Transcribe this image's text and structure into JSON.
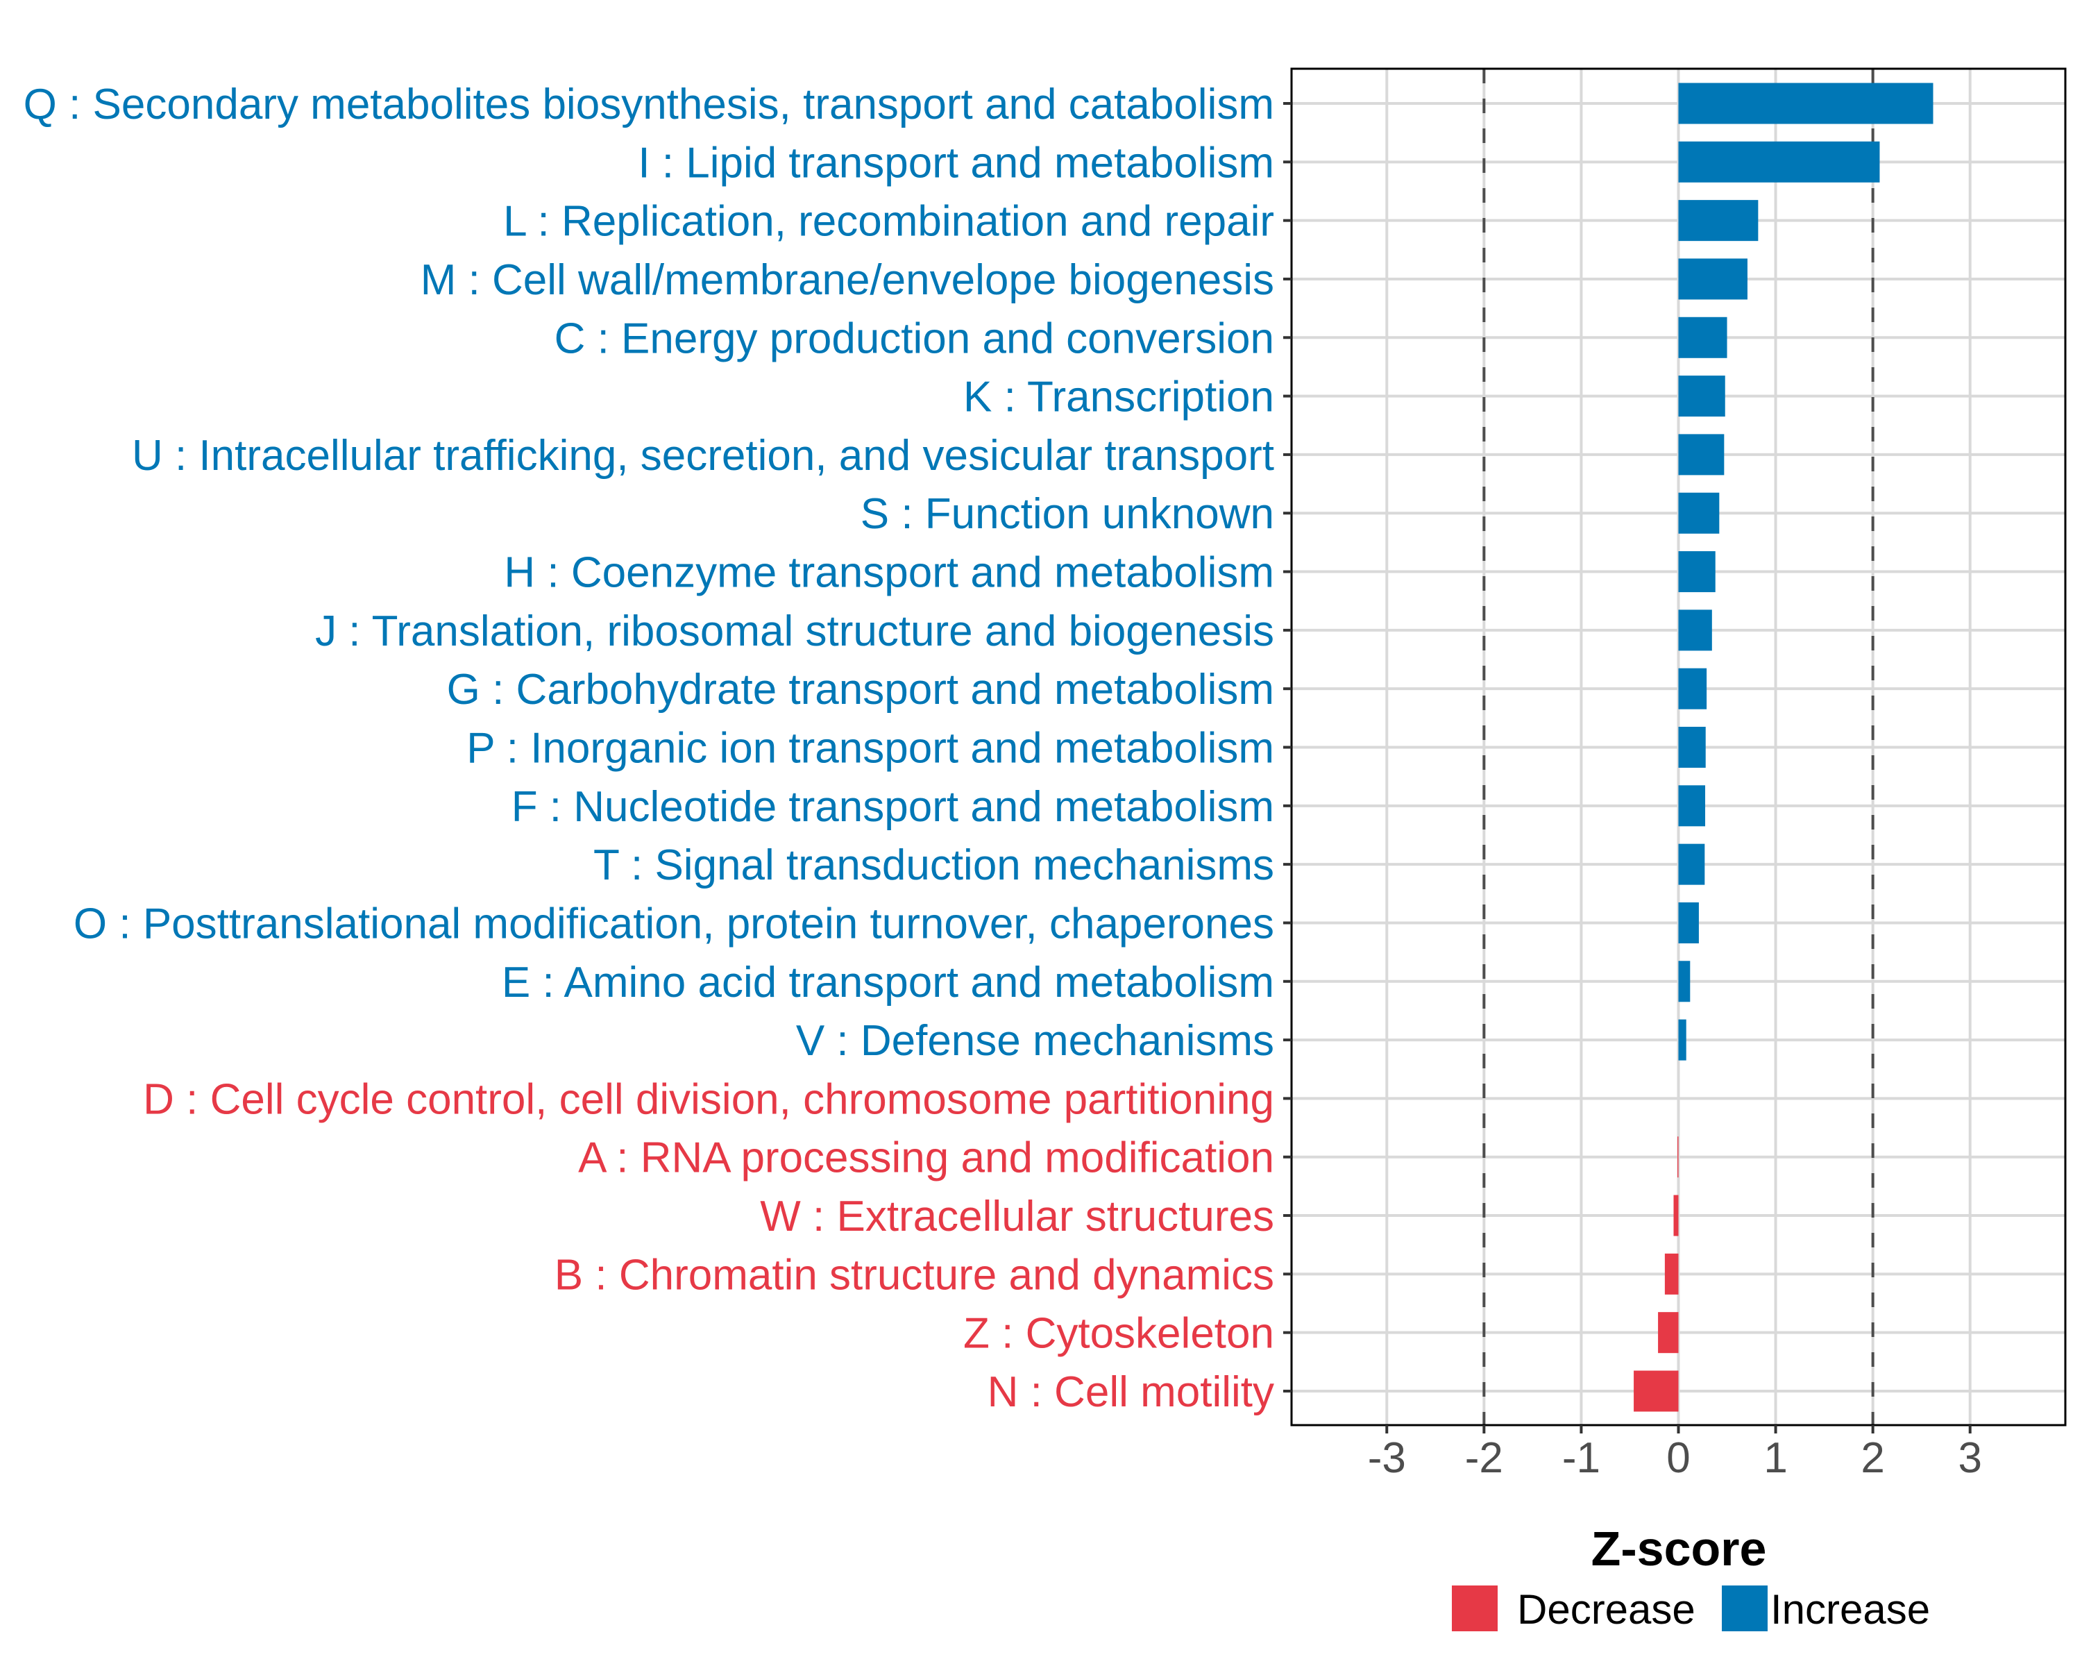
{
  "chart_data": {
    "type": "bar",
    "orientation": "horizontal",
    "title": "",
    "xlabel": "Z-score",
    "ylabel": "",
    "xlim": [
      -3.98,
      3.98
    ],
    "xticks": [
      -3,
      -2,
      -1,
      0,
      1,
      2,
      3
    ],
    "xtick_labels": [
      "-3",
      "-2",
      "-1",
      "0",
      "1",
      "2",
      "3"
    ],
    "grid": true,
    "reference_lines": [
      {
        "x": -2,
        "style": "dashed"
      },
      {
        "x": 2,
        "style": "dashed"
      }
    ],
    "legend": {
      "placement": "bottom",
      "entries": [
        {
          "label": "Decrease",
          "color": "#E63946"
        },
        {
          "label": "Increase",
          "color": "#0077B6"
        }
      ]
    },
    "categories": [
      "Q : Secondary metabolites biosynthesis, transport and catabolism",
      "I : Lipid transport and metabolism",
      "L : Replication, recombination and repair",
      "M : Cell wall/membrane/envelope biogenesis",
      "C : Energy production and conversion",
      "K : Transcription",
      "U : Intracellular trafficking, secretion, and vesicular transport",
      "S : Function unknown",
      "H : Coenzyme transport and metabolism",
      "J : Translation, ribosomal structure and biogenesis",
      "G : Carbohydrate transport and metabolism",
      "P : Inorganic ion transport and metabolism",
      "F : Nucleotide transport and metabolism",
      "T : Signal transduction mechanisms",
      "O : Posttranslational modification, protein turnover, chaperones",
      "E : Amino acid transport and metabolism",
      "V : Defense mechanisms",
      "D : Cell cycle control, cell division, chromosome partitioning",
      "A : RNA processing and modification",
      "W : Extracellular structures",
      "B : Chromatin structure and dynamics",
      "Z : Cytoskeleton",
      "N : Cell motility"
    ],
    "values": [
      2.62,
      2.07,
      0.82,
      0.71,
      0.5,
      0.48,
      0.47,
      0.42,
      0.38,
      0.345,
      0.29,
      0.28,
      0.275,
      0.27,
      0.21,
      0.12,
      0.08,
      0.0,
      -0.01,
      -0.05,
      -0.14,
      -0.21,
      -0.46
    ],
    "groups": [
      "Increase",
      "Increase",
      "Increase",
      "Increase",
      "Increase",
      "Increase",
      "Increase",
      "Increase",
      "Increase",
      "Increase",
      "Increase",
      "Increase",
      "Increase",
      "Increase",
      "Increase",
      "Increase",
      "Increase",
      "Decrease",
      "Decrease",
      "Decrease",
      "Decrease",
      "Decrease",
      "Decrease"
    ],
    "colors": {
      "Increase": "#0077B6",
      "Decrease": "#E63946"
    }
  }
}
